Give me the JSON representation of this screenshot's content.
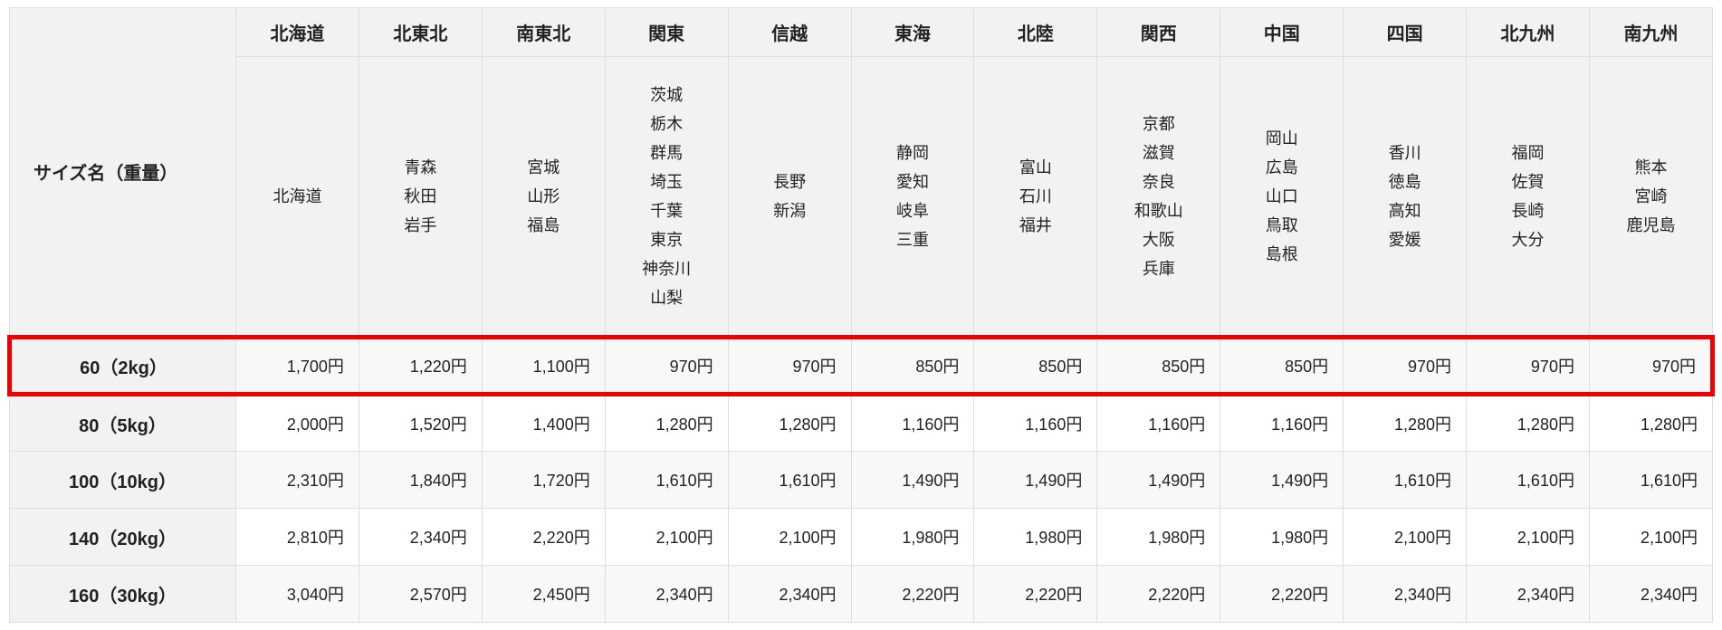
{
  "table": {
    "corner_header": "サイズ名（重量）",
    "regions": [
      {
        "name": "北海道",
        "prefectures": [
          "北海道"
        ]
      },
      {
        "name": "北東北",
        "prefectures": [
          "青森",
          "秋田",
          "岩手"
        ]
      },
      {
        "name": "南東北",
        "prefectures": [
          "宮城",
          "山形",
          "福島"
        ]
      },
      {
        "name": "関東",
        "prefectures": [
          "茨城",
          "栃木",
          "群馬",
          "埼玉",
          "千葉",
          "東京",
          "神奈川",
          "山梨"
        ]
      },
      {
        "name": "信越",
        "prefectures": [
          "長野",
          "新潟"
        ]
      },
      {
        "name": "東海",
        "prefectures": [
          "静岡",
          "愛知",
          "岐阜",
          "三重"
        ]
      },
      {
        "name": "北陸",
        "prefectures": [
          "富山",
          "石川",
          "福井"
        ]
      },
      {
        "name": "関西",
        "prefectures": [
          "京都",
          "滋賀",
          "奈良",
          "和歌山",
          "大阪",
          "兵庫"
        ]
      },
      {
        "name": "中国",
        "prefectures": [
          "岡山",
          "広島",
          "山口",
          "鳥取",
          "島根"
        ]
      },
      {
        "name": "四国",
        "prefectures": [
          "香川",
          "徳島",
          "高知",
          "愛媛"
        ]
      },
      {
        "name": "北九州",
        "prefectures": [
          "福岡",
          "佐賀",
          "長崎",
          "大分"
        ]
      },
      {
        "name": "南九州",
        "prefectures": [
          "熊本",
          "宮崎",
          "鹿児島"
        ]
      }
    ],
    "rows": [
      {
        "size": "60（2kg）",
        "highlighted": true,
        "prices": [
          "1,700円",
          "1,220円",
          "1,100円",
          "970円",
          "970円",
          "850円",
          "850円",
          "850円",
          "850円",
          "970円",
          "970円",
          "970円"
        ]
      },
      {
        "size": "80（5kg）",
        "highlighted": false,
        "prices": [
          "2,000円",
          "1,520円",
          "1,400円",
          "1,280円",
          "1,280円",
          "1,160円",
          "1,160円",
          "1,160円",
          "1,160円",
          "1,280円",
          "1,280円",
          "1,280円"
        ]
      },
      {
        "size": "100（10kg）",
        "highlighted": false,
        "prices": [
          "2,310円",
          "1,840円",
          "1,720円",
          "1,610円",
          "1,610円",
          "1,490円",
          "1,490円",
          "1,490円",
          "1,490円",
          "1,610円",
          "1,610円",
          "1,610円"
        ]
      },
      {
        "size": "140（20kg）",
        "highlighted": false,
        "prices": [
          "2,810円",
          "2,340円",
          "2,220円",
          "2,100円",
          "2,100円",
          "1,980円",
          "1,980円",
          "1,980円",
          "1,980円",
          "2,100円",
          "2,100円",
          "2,100円"
        ]
      },
      {
        "size": "160（30kg）",
        "highlighted": false,
        "prices": [
          "3,040円",
          "2,570円",
          "2,450円",
          "2,340円",
          "2,340円",
          "2,220円",
          "2,220円",
          "2,220円",
          "2,220円",
          "2,340円",
          "2,340円",
          "2,340円"
        ]
      }
    ],
    "colors": {
      "highlight_border": "#ee0000",
      "header_bg": "#f2f2f2",
      "stripe_bg": "#f8f8f8",
      "grid_border": "#dedede"
    }
  }
}
